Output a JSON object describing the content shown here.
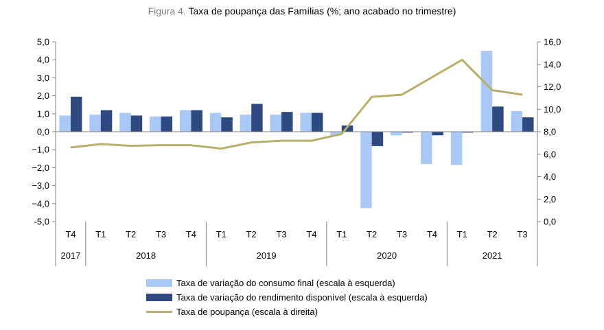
{
  "figure_label": "Figura 4.",
  "figure_title": "Taxa de poupança das Famílias (%; ano acabado no trimestre)",
  "colors": {
    "consumption": "#a9c8f5",
    "income": "#2e4a80",
    "savings": "#b8ae6a",
    "axis": "#808080",
    "text": "#000000"
  },
  "chart_data": {
    "type": "bar",
    "title": "Taxa de poupança das Famílias (%; ano acabado no trimestre)",
    "categories": [
      "T4",
      "T1",
      "T2",
      "T3",
      "T4",
      "T1",
      "T2",
      "T3",
      "T4",
      "T1",
      "T2",
      "T3",
      "T4",
      "T1",
      "T2",
      "T3"
    ],
    "years": [
      {
        "label": "2017",
        "start": 0,
        "end": 0
      },
      {
        "label": "2018",
        "start": 1,
        "end": 4
      },
      {
        "label": "2019",
        "start": 5,
        "end": 8
      },
      {
        "label": "2020",
        "start": 9,
        "end": 12
      },
      {
        "label": "2021",
        "start": 13,
        "end": 15
      }
    ],
    "y_left": {
      "min": -5,
      "max": 5,
      "step": 1,
      "tick_labels": [
        "5,0",
        "4,0",
        "3,0",
        "2,0",
        "1,0",
        "0,0",
        "−1,0",
        "−2,0",
        "−3,0",
        "−4,0",
        "-5,0"
      ]
    },
    "y_right": {
      "min": 0,
      "max": 16,
      "step": 2,
      "tick_labels": [
        "16,0",
        "14,0",
        "12,0",
        "10,0",
        "8,0",
        "6,0",
        "4,0",
        "2,0",
        "0,0"
      ]
    },
    "series": [
      {
        "name": "Taxa de variação do consumo final (escala à esquerda)",
        "kind": "bar",
        "axis": "left",
        "values": [
          0.9,
          0.95,
          1.05,
          0.85,
          1.2,
          1.05,
          0.95,
          0.95,
          1.05,
          -0.2,
          -4.25,
          -0.2,
          -1.8,
          -1.85,
          4.5,
          1.15
        ]
      },
      {
        "name": "Taxa de variação do rendimento disponível (escala à esquerda)",
        "kind": "bar",
        "axis": "left",
        "values": [
          1.95,
          1.2,
          0.9,
          0.85,
          1.2,
          0.8,
          1.55,
          1.1,
          1.05,
          0.35,
          -0.8,
          -0.05,
          -0.2,
          -0.05,
          1.4,
          0.8
        ]
      },
      {
        "name": "Taxa de poupança (escala à direita)",
        "kind": "line",
        "axis": "right",
        "values": [
          6.6,
          6.9,
          6.75,
          6.8,
          6.8,
          6.5,
          7.05,
          7.2,
          7.2,
          7.8,
          11.1,
          11.3,
          null,
          14.4,
          11.7,
          11.3
        ]
      }
    ]
  },
  "legend": {
    "consumption": "Taxa de variação do consumo final (escala à esquerda)",
    "income": "Taxa de variação do rendimento disponível (escala à esquerda)",
    "savings": "Taxa de poupança (escala à direita)"
  }
}
